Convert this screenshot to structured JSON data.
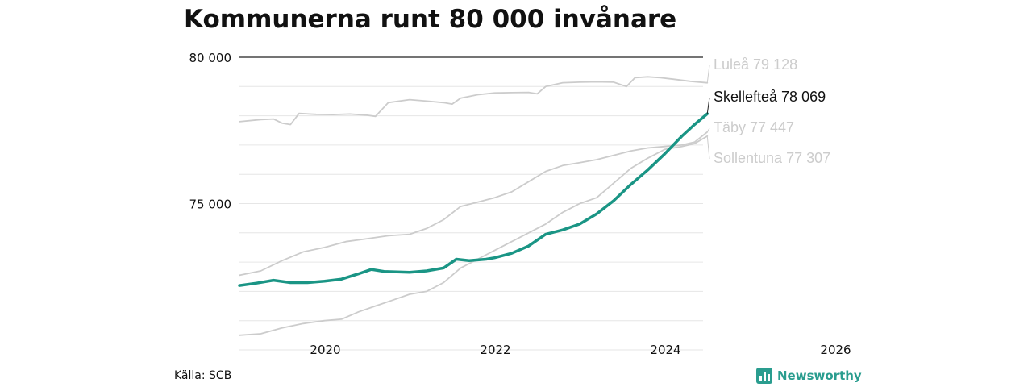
{
  "title": "Kommunerna runt 80 000 invånare",
  "source": "Källa: SCB",
  "brand": {
    "name": "Newsworthy",
    "icon": "newsworthy-logo-icon"
  },
  "colors": {
    "highlight": "#1a9585",
    "muted": "#cccccc",
    "text": "#111111",
    "grid": "#e6e6e6",
    "brand": "#2a9d8f"
  },
  "chart_data": {
    "type": "line",
    "title": "Kommunerna runt 80 000 invånare",
    "xlabel": "",
    "ylabel": "",
    "xlim": [
      2019.0,
      2026.3
    ],
    "ylim": [
      70000,
      80000
    ],
    "x_ticks": [
      2020,
      2022,
      2024,
      2026
    ],
    "x_tick_labels": [
      "2020",
      "2022",
      "2024",
      "2026"
    ],
    "y_ticks": [
      75000,
      80000
    ],
    "y_tick_labels": [
      "75 000",
      "80 000"
    ],
    "grid": true,
    "series": [
      {
        "name": "Luleå",
        "end_label": "Luleå 79 128",
        "highlight": false,
        "points": [
          [
            2019.0,
            77800
          ],
          [
            2019.25,
            77870
          ],
          [
            2019.4,
            77890
          ],
          [
            2019.5,
            77750
          ],
          [
            2019.6,
            77700
          ],
          [
            2019.7,
            78080
          ],
          [
            2019.9,
            78050
          ],
          [
            2020.1,
            78040
          ],
          [
            2020.3,
            78060
          ],
          [
            2020.5,
            78020
          ],
          [
            2020.6,
            77980
          ],
          [
            2020.75,
            78450
          ],
          [
            2021.0,
            78550
          ],
          [
            2021.2,
            78500
          ],
          [
            2021.4,
            78450
          ],
          [
            2021.5,
            78400
          ],
          [
            2021.6,
            78600
          ],
          [
            2021.8,
            78720
          ],
          [
            2022.0,
            78780
          ],
          [
            2022.2,
            78790
          ],
          [
            2022.4,
            78800
          ],
          [
            2022.5,
            78750
          ],
          [
            2022.6,
            79000
          ],
          [
            2022.8,
            79130
          ],
          [
            2023.0,
            79150
          ],
          [
            2023.2,
            79160
          ],
          [
            2023.4,
            79150
          ],
          [
            2023.55,
            79000
          ],
          [
            2023.65,
            79300
          ],
          [
            2023.8,
            79330
          ],
          [
            2023.95,
            79300
          ],
          [
            2024.1,
            79250
          ],
          [
            2024.3,
            79180
          ],
          [
            2024.5,
            79128
          ]
        ]
      },
      {
        "name": "Täby",
        "end_label": "Täby 77 447",
        "highlight": false,
        "points": [
          [
            2019.0,
            72550
          ],
          [
            2019.25,
            72700
          ],
          [
            2019.5,
            73050
          ],
          [
            2019.75,
            73350
          ],
          [
            2020.0,
            73500
          ],
          [
            2020.25,
            73700
          ],
          [
            2020.5,
            73800
          ],
          [
            2020.75,
            73900
          ],
          [
            2021.0,
            73950
          ],
          [
            2021.2,
            74150
          ],
          [
            2021.4,
            74450
          ],
          [
            2021.6,
            74900
          ],
          [
            2021.8,
            75050
          ],
          [
            2022.0,
            75200
          ],
          [
            2022.2,
            75400
          ],
          [
            2022.4,
            75750
          ],
          [
            2022.6,
            76100
          ],
          [
            2022.8,
            76300
          ],
          [
            2023.0,
            76400
          ],
          [
            2023.2,
            76500
          ],
          [
            2023.4,
            76650
          ],
          [
            2023.6,
            76800
          ],
          [
            2023.8,
            76900
          ],
          [
            2024.0,
            76950
          ],
          [
            2024.2,
            77000
          ],
          [
            2024.35,
            77100
          ],
          [
            2024.5,
            77447
          ]
        ]
      },
      {
        "name": "Sollentuna",
        "end_label": "Sollentuna 77 307",
        "highlight": false,
        "points": [
          [
            2019.0,
            70500
          ],
          [
            2019.25,
            70550
          ],
          [
            2019.5,
            70750
          ],
          [
            2019.75,
            70900
          ],
          [
            2020.0,
            71000
          ],
          [
            2020.2,
            71050
          ],
          [
            2020.4,
            71300
          ],
          [
            2020.6,
            71500
          ],
          [
            2020.8,
            71700
          ],
          [
            2021.0,
            71900
          ],
          [
            2021.2,
            72000
          ],
          [
            2021.4,
            72300
          ],
          [
            2021.6,
            72800
          ],
          [
            2021.8,
            73100
          ],
          [
            2022.0,
            73400
          ],
          [
            2022.2,
            73700
          ],
          [
            2022.4,
            74000
          ],
          [
            2022.6,
            74300
          ],
          [
            2022.8,
            74700
          ],
          [
            2023.0,
            75000
          ],
          [
            2023.2,
            75200
          ],
          [
            2023.4,
            75700
          ],
          [
            2023.6,
            76200
          ],
          [
            2023.8,
            76550
          ],
          [
            2024.0,
            76850
          ],
          [
            2024.2,
            76950
          ],
          [
            2024.35,
            77050
          ],
          [
            2024.5,
            77307
          ]
        ]
      },
      {
        "name": "Skellefteå",
        "end_label": "Skellefteå 78 069",
        "highlight": true,
        "points": [
          [
            2019.0,
            72200
          ],
          [
            2019.2,
            72280
          ],
          [
            2019.4,
            72380
          ],
          [
            2019.6,
            72300
          ],
          [
            2019.8,
            72300
          ],
          [
            2020.0,
            72350
          ],
          [
            2020.2,
            72420
          ],
          [
            2020.4,
            72600
          ],
          [
            2020.55,
            72750
          ],
          [
            2020.7,
            72680
          ],
          [
            2021.0,
            72650
          ],
          [
            2021.2,
            72700
          ],
          [
            2021.4,
            72800
          ],
          [
            2021.55,
            73100
          ],
          [
            2021.7,
            73050
          ],
          [
            2021.9,
            73100
          ],
          [
            2022.0,
            73150
          ],
          [
            2022.2,
            73300
          ],
          [
            2022.4,
            73550
          ],
          [
            2022.6,
            73950
          ],
          [
            2022.8,
            74100
          ],
          [
            2023.0,
            74300
          ],
          [
            2023.2,
            74650
          ],
          [
            2023.4,
            75100
          ],
          [
            2023.6,
            75650
          ],
          [
            2023.8,
            76150
          ],
          [
            2024.0,
            76700
          ],
          [
            2024.2,
            77300
          ],
          [
            2024.35,
            77700
          ],
          [
            2024.5,
            78069
          ]
        ]
      }
    ]
  }
}
